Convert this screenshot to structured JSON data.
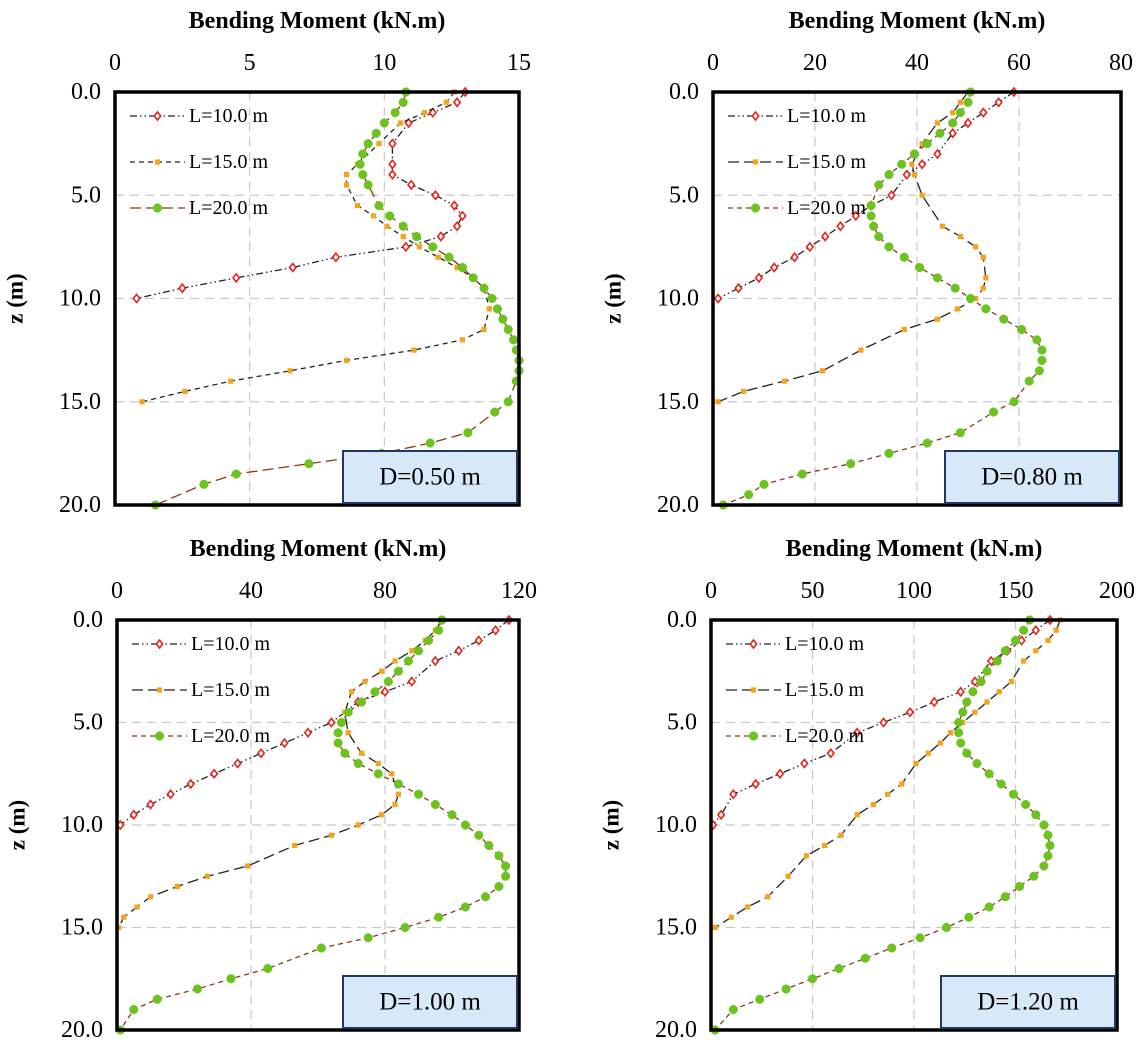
{
  "colors": {
    "L10": "#e8201a",
    "L15": "#f6a21a",
    "L20": "#6cc21e",
    "L20_line_panel1": "#8a3a12",
    "frame": "#000000",
    "grid": "#c8c8c8",
    "annotation_fill": "#d7e8f8",
    "annotation_border": "#1f3864"
  },
  "chart_data": [
    {
      "type": "line",
      "title": "Bending Moment (kN.m)",
      "xlabel": "Bending Moment (kN.m)",
      "ylabel": "z (m)",
      "xlim": [
        0,
        15
      ],
      "ylim": [
        20,
        0
      ],
      "xticks": [
        "0",
        "5",
        "10",
        "15"
      ],
      "yticks": [
        "0.0",
        "5.0",
        "10.0",
        "15.0",
        "20.0"
      ],
      "annotation": "D=0.50 m",
      "legend_position": "top-left",
      "grid": true,
      "series": [
        {
          "name": "L=10.0 m",
          "line_style": "dash-dot-dot",
          "x": [
            13.0,
            12.7,
            11.8,
            10.9,
            10.3,
            10.3,
            10.3,
            11.0,
            11.9,
            12.6,
            12.9,
            12.7,
            12.1,
            10.8,
            8.2,
            6.6,
            4.5,
            2.5,
            0.8
          ],
          "y": [
            0.0,
            0.5,
            1.0,
            1.5,
            2.5,
            3.5,
            4.0,
            4.5,
            5.0,
            5.5,
            6.0,
            6.5,
            7.0,
            7.5,
            8.0,
            8.5,
            9.0,
            9.5,
            10.0
          ]
        },
        {
          "name": "L=15.0 m",
          "line_style": "dash",
          "x": [
            12.6,
            12.3,
            11.5,
            10.6,
            9.8,
            9.0,
            8.6,
            8.6,
            9.0,
            9.6,
            10.1,
            10.7,
            11.3,
            12.0,
            12.7,
            13.3,
            13.7,
            13.9,
            13.7,
            12.9,
            11.1,
            8.6,
            6.5,
            4.3,
            2.6,
            1.0
          ],
          "y": [
            0.0,
            0.5,
            1.0,
            1.5,
            2.5,
            3.5,
            4.0,
            4.5,
            5.5,
            6.0,
            6.5,
            7.0,
            7.5,
            8.0,
            8.5,
            9.0,
            9.5,
            10.5,
            11.5,
            12.0,
            12.5,
            13.0,
            13.5,
            14.0,
            14.5,
            15.0
          ]
        },
        {
          "name": "L=20.0 m",
          "line_style": "long-dash",
          "x": [
            10.8,
            10.7,
            10.4,
            10.0,
            9.7,
            9.4,
            9.2,
            9.1,
            9.2,
            9.4,
            9.8,
            10.2,
            10.7,
            11.2,
            11.8,
            12.4,
            12.9,
            13.3,
            13.7,
            14.0,
            14.2,
            14.4,
            14.6,
            14.8,
            14.9,
            15.0,
            15.0,
            14.9,
            14.6,
            14.1,
            13.1,
            11.7,
            9.9,
            7.2,
            4.5,
            3.3,
            1.5
          ],
          "y": [
            0.0,
            0.5,
            1.0,
            1.5,
            2.0,
            2.5,
            3.0,
            3.5,
            4.0,
            4.5,
            5.5,
            6.0,
            6.5,
            7.0,
            7.5,
            8.0,
            8.5,
            9.0,
            9.5,
            10.0,
            10.5,
            11.0,
            11.5,
            12.0,
            12.5,
            13.0,
            13.5,
            14.0,
            15.0,
            15.5,
            16.5,
            17.0,
            17.5,
            18.0,
            18.5,
            19.0,
            20.0
          ]
        }
      ]
    },
    {
      "type": "line",
      "title": "Bending Moment (kN.m)",
      "xlabel": "Bending Moment (kN.m)",
      "ylabel": "z (m)",
      "xlim": [
        0,
        80
      ],
      "ylim": [
        20,
        0
      ],
      "xticks": [
        "0",
        "20",
        "40",
        "60",
        "80"
      ],
      "yticks": [
        "0.0",
        "5.0",
        "10.0",
        "15.0",
        "20.0"
      ],
      "annotation": "D=0.80 m",
      "legend_position": "top-left",
      "grid": true,
      "series": [
        {
          "name": "L=10.0 m",
          "line_style": "dash-dot-dot",
          "x": [
            59.0,
            56.0,
            53.0,
            50.0,
            47.0,
            44.0,
            41.0,
            38.0,
            35.0,
            31.0,
            28.0,
            25.0,
            22.0,
            19.0,
            16.0,
            12.0,
            9.0,
            5.0,
            1.0
          ],
          "y": [
            0.0,
            0.5,
            1.0,
            1.5,
            2.0,
            3.0,
            3.5,
            4.0,
            5.0,
            5.5,
            6.0,
            6.5,
            7.0,
            7.5,
            8.0,
            8.5,
            9.0,
            9.5,
            10.0
          ]
        },
        {
          "name": "L=15.0 m",
          "line_style": "long-dash",
          "x": [
            50.0,
            48.5,
            47.0,
            44.0,
            41.0,
            39.0,
            39.5,
            41.0,
            45.0,
            48.5,
            51.5,
            53.0,
            53.5,
            53.0,
            51.5,
            48.0,
            44.0,
            37.5,
            29.0,
            21.5,
            14.0,
            6.0,
            1.0
          ],
          "y": [
            0.0,
            0.5,
            1.0,
            1.5,
            2.5,
            3.5,
            4.0,
            5.0,
            6.5,
            7.0,
            7.5,
            8.0,
            9.0,
            9.5,
            10.0,
            10.5,
            11.0,
            11.5,
            12.5,
            13.5,
            14.0,
            14.5,
            15.0
          ]
        },
        {
          "name": "L=20.0 m",
          "line_style": "dash",
          "x": [
            50.5,
            50.0,
            48.5,
            47.0,
            44.5,
            42.0,
            39.5,
            37.0,
            34.5,
            32.5,
            31.0,
            31.0,
            31.5,
            32.5,
            34.5,
            37.5,
            40.5,
            44.0,
            47.5,
            50.5,
            53.5,
            57.0,
            60.5,
            63.5,
            64.5,
            64.5,
            64.0,
            62.0,
            59.0,
            55.0,
            48.5,
            42.0,
            34.5,
            27.0,
            17.5,
            10.0,
            7.0,
            2.0
          ],
          "y": [
            0.0,
            0.5,
            1.0,
            1.5,
            2.0,
            2.5,
            3.0,
            3.5,
            4.0,
            4.5,
            5.5,
            6.0,
            6.5,
            7.0,
            7.5,
            8.0,
            8.5,
            9.0,
            9.5,
            10.0,
            10.5,
            11.0,
            11.5,
            12.0,
            12.5,
            13.0,
            13.5,
            14.0,
            15.0,
            15.5,
            16.5,
            17.0,
            17.5,
            18.0,
            18.5,
            19.0,
            19.5,
            20.0
          ]
        }
      ]
    },
    {
      "type": "line",
      "title": "Bending Moment (kN.m)",
      "xlabel": "Bending Moment (kN.m)",
      "ylabel": "z (m)",
      "xlim": [
        0,
        120
      ],
      "ylim": [
        20,
        0
      ],
      "xticks": [
        "0",
        "40",
        "80",
        "120"
      ],
      "yticks": [
        "0.0",
        "5.0",
        "10.0",
        "15.0",
        "20.0"
      ],
      "annotation": "D=1.00 m",
      "legend_position": "top-left",
      "grid": true,
      "series": [
        {
          "name": "L=10.0 m",
          "line_style": "dash-dot-dot",
          "x": [
            117.0,
            113.0,
            108.0,
            102.0,
            95.0,
            88.0,
            80.0,
            72.0,
            64.0,
            57.0,
            50.0,
            43.0,
            36.0,
            29.0,
            22.0,
            16.0,
            10.0,
            5.0,
            1.0
          ],
          "y": [
            0.0,
            0.5,
            1.0,
            1.5,
            2.0,
            3.0,
            3.5,
            4.0,
            5.0,
            5.5,
            6.0,
            6.5,
            7.0,
            7.5,
            8.0,
            8.5,
            9.0,
            9.5,
            10.0
          ]
        },
        {
          "name": "L=15.0 m",
          "line_style": "long-dash",
          "x": [
            97.0,
            95.0,
            92.0,
            88.0,
            83.0,
            79.0,
            74.0,
            70.0,
            68.0,
            69.0,
            73.0,
            78.0,
            82.0,
            84.0,
            83.0,
            79.0,
            72.0,
            64.0,
            53.0,
            39.0,
            27.0,
            18.0,
            10.0,
            6.0,
            2.0,
            0.5
          ],
          "y": [
            0.0,
            0.5,
            1.0,
            1.5,
            2.0,
            2.5,
            3.0,
            3.5,
            4.5,
            5.5,
            6.5,
            7.0,
            7.5,
            8.5,
            9.0,
            9.5,
            10.0,
            10.5,
            11.0,
            12.0,
            12.5,
            13.0,
            13.5,
            14.0,
            14.5,
            15.0
          ]
        },
        {
          "name": "L=20.0 m",
          "line_style": "dash",
          "x": [
            97.0,
            96.0,
            93.0,
            90.0,
            87.0,
            84.0,
            81.0,
            77.0,
            73.0,
            69.0,
            67.0,
            66.0,
            66.0,
            68.0,
            72.0,
            78.0,
            84.0,
            90.0,
            95.0,
            100.0,
            104.0,
            108.0,
            111.0,
            114.0,
            116.0,
            116.0,
            114.0,
            110.0,
            104.0,
            96.0,
            86.0,
            75.0,
            61.0,
            45.0,
            34.0,
            24.0,
            12.0,
            5.0,
            1.0
          ],
          "y": [
            0.0,
            0.5,
            1.0,
            1.5,
            2.0,
            2.5,
            3.0,
            3.5,
            4.0,
            4.5,
            5.0,
            5.5,
            6.0,
            6.5,
            7.0,
            7.5,
            8.0,
            8.5,
            9.0,
            9.5,
            10.0,
            10.5,
            11.0,
            11.5,
            12.0,
            12.5,
            13.0,
            13.5,
            14.0,
            14.5,
            15.0,
            15.5,
            16.0,
            17.0,
            17.5,
            18.0,
            18.5,
            19.0,
            20.0
          ]
        }
      ]
    },
    {
      "type": "line",
      "title": "Bending Moment (kN.m)",
      "xlabel": "Bending Moment (kN.m)",
      "ylabel": "z (m)",
      "xlim": [
        0,
        200
      ],
      "ylim": [
        20,
        0
      ],
      "xticks": [
        "0",
        "50",
        "100",
        "150",
        "200"
      ],
      "yticks": [
        "0.0",
        "5.0",
        "10.0",
        "15.0",
        "20.0"
      ],
      "annotation": "D=1.20 m",
      "legend_position": "top-left",
      "grid": true,
      "series": [
        {
          "name": "L=10.0 m",
          "line_style": "dash-dot-dot",
          "x": [
            167.0,
            160.0,
            153.0,
            146.0,
            138.0,
            130.0,
            123.0,
            110.0,
            98.0,
            85.0,
            72.0,
            59.0,
            46.0,
            34.0,
            22.0,
            11.0,
            5.0,
            1.0
          ],
          "y": [
            0.0,
            0.5,
            1.0,
            1.5,
            2.0,
            3.0,
            3.5,
            4.0,
            4.5,
            5.0,
            5.5,
            6.5,
            7.0,
            7.5,
            8.0,
            8.5,
            9.5,
            10.0
          ]
        },
        {
          "name": "L=15.0 m",
          "line_style": "long-dash",
          "x": [
            172.0,
            170.0,
            166.0,
            160.0,
            154.0,
            148.0,
            142.0,
            136.0,
            130.0,
            124.0,
            118.0,
            113.0,
            107.0,
            101.0,
            94.0,
            87.0,
            80.0,
            72.0,
            64.0,
            56.0,
            47.0,
            38.0,
            28.0,
            18.0,
            10.0,
            2.0
          ],
          "y": [
            0.0,
            0.5,
            1.0,
            1.5,
            2.0,
            3.0,
            3.5,
            4.0,
            4.5,
            5.0,
            5.5,
            6.0,
            6.5,
            7.0,
            8.0,
            8.5,
            9.0,
            9.5,
            10.5,
            11.0,
            11.5,
            12.5,
            13.5,
            14.0,
            14.5,
            15.0
          ]
        },
        {
          "name": "L=20.0 m",
          "line_style": "dash",
          "x": [
            157.0,
            154.0,
            150.0,
            145.0,
            141.0,
            136.0,
            133.0,
            129.0,
            126.0,
            124.0,
            122.0,
            122.0,
            123.0,
            126.0,
            131.0,
            137.0,
            143.0,
            149.0,
            155.0,
            160.0,
            164.0,
            166.0,
            167.0,
            166.0,
            164.0,
            159.0,
            152.0,
            145.0,
            137.0,
            127.0,
            116.0,
            103.0,
            89.0,
            76.0,
            63.0,
            50.0,
            37.0,
            24.0,
            11.0,
            2.0
          ],
          "y": [
            0.0,
            0.5,
            1.0,
            1.5,
            2.0,
            2.5,
            3.0,
            3.5,
            4.0,
            4.5,
            5.0,
            5.5,
            6.0,
            6.5,
            7.0,
            7.5,
            8.0,
            8.5,
            9.0,
            9.5,
            10.0,
            10.5,
            11.0,
            11.5,
            12.0,
            12.5,
            13.0,
            13.5,
            14.0,
            14.5,
            15.0,
            15.5,
            16.0,
            16.5,
            17.0,
            17.5,
            18.0,
            18.5,
            19.0,
            20.0
          ]
        }
      ]
    }
  ]
}
